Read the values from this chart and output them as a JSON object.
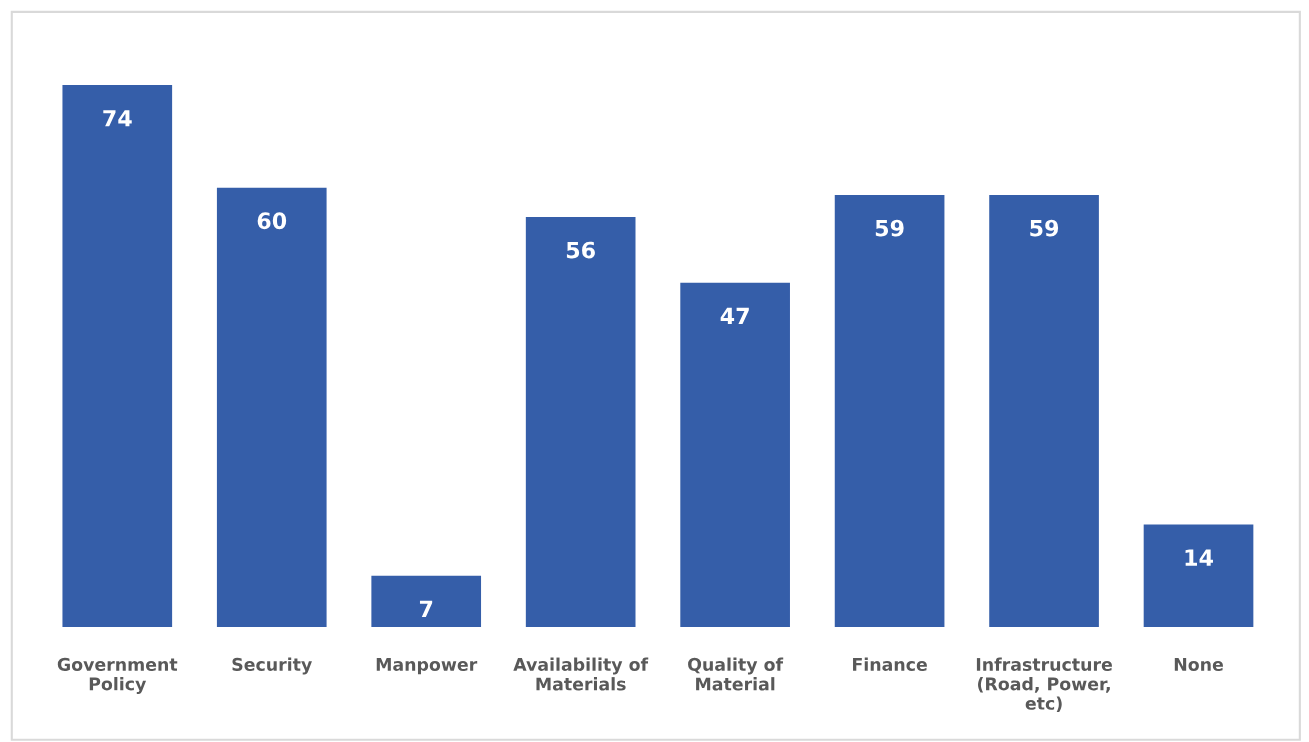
{
  "chart_data": {
    "type": "bar",
    "categories": [
      "Government\nPolicy",
      "Security",
      "Manpower",
      "Availability of\nMaterials",
      "Quality of\nMaterial",
      "Finance",
      "Infrastructure\n(Road, Power,\netc)",
      "None"
    ],
    "values": [
      74,
      60,
      7,
      56,
      47,
      59,
      59,
      14
    ],
    "color": "#355ea9",
    "tick_labels": "x",
    "data_labels": true,
    "grid": false,
    "legend": false
  }
}
